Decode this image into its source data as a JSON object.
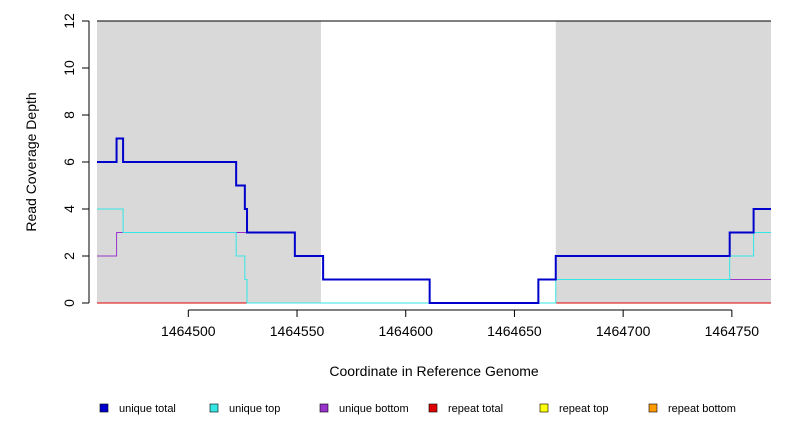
{
  "chart_data": {
    "type": "line",
    "title": "",
    "xlabel": "Coordinate in Reference Genome",
    "ylabel": "Read Coverage Depth",
    "xlim": [
      1464458,
      1464768
    ],
    "ylim": [
      0,
      12
    ],
    "x_ticks": [
      1464500,
      1464550,
      1464600,
      1464650,
      1464700,
      1464750
    ],
    "y_ticks": [
      0,
      2,
      4,
      6,
      8,
      10,
      12
    ],
    "grid": false,
    "legend_position": "bottom",
    "shaded_regions": [
      {
        "x_start": 1464458,
        "x_end": 1464561,
        "color": "#d9d9d9"
      },
      {
        "x_start": 1464669,
        "x_end": 1464768,
        "color": "#d9d9d9"
      }
    ],
    "series": [
      {
        "name": "unique total",
        "color": "#0000cc",
        "width": 2,
        "steps": [
          [
            1464458,
            6
          ],
          [
            1464467,
            7
          ],
          [
            1464470,
            6
          ],
          [
            1464522,
            5
          ],
          [
            1464526,
            4
          ],
          [
            1464527,
            3
          ],
          [
            1464549,
            2
          ],
          [
            1464562,
            1
          ],
          [
            1464611,
            0
          ],
          [
            1464661,
            1
          ],
          [
            1464669,
            2
          ],
          [
            1464749,
            3
          ],
          [
            1464760,
            4
          ],
          [
            1464768,
            4
          ]
        ]
      },
      {
        "name": "unique top",
        "color": "#33e6e6",
        "width": 1,
        "steps": [
          [
            1464458,
            4
          ],
          [
            1464470,
            3
          ],
          [
            1464522,
            2
          ],
          [
            1464526,
            1
          ],
          [
            1464527,
            0
          ],
          [
            1464669,
            1
          ],
          [
            1464749,
            2
          ],
          [
            1464760,
            3
          ],
          [
            1464768,
            3
          ]
        ]
      },
      {
        "name": "unique bottom",
        "color": "#9933cc",
        "width": 1,
        "steps": [
          [
            1464458,
            2
          ],
          [
            1464467,
            3
          ],
          [
            1464527,
            3
          ],
          [
            1464549,
            2
          ],
          [
            1464562,
            1
          ],
          [
            1464611,
            0
          ],
          [
            1464661,
            1
          ],
          [
            1464768,
            1
          ]
        ]
      },
      {
        "name": "repeat total",
        "color": "#dd0000",
        "width": 1,
        "steps": [
          [
            1464458,
            0
          ],
          [
            1464768,
            0
          ]
        ]
      },
      {
        "name": "repeat top",
        "color": "#ffff00",
        "width": 1,
        "steps": [
          [
            1464458,
            0
          ],
          [
            1464768,
            0
          ]
        ]
      },
      {
        "name": "repeat bottom",
        "color": "#ff9900",
        "width": 1,
        "steps": [
          [
            1464458,
            0
          ],
          [
            1464768,
            0
          ]
        ]
      }
    ]
  }
}
